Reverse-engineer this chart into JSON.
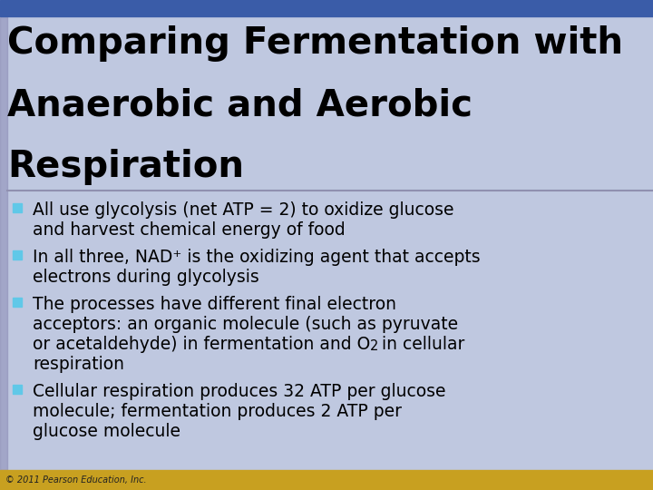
{
  "title_lines": [
    "Comparing Fermentation with",
    "Anaerobic and Aerobic",
    "Respiration"
  ],
  "title_color": "#000000",
  "title_bg_color": "#3a5ca8",
  "body_bg_color": "#bfc8e0",
  "footer_bg_color": "#c8a020",
  "footer_text": "© 2011 Pearson Education, Inc.",
  "bullet_color": "#60c8e8",
  "body_text_color": "#000000",
  "separator_color": "#9090b0",
  "left_bar_color": "#9090b8",
  "bullet_points": [
    {
      "main": "All use glycolysis (net ATP = 2) to oxidize glucose",
      "continuation": [
        "and harvest chemical energy of food"
      ],
      "o2_line": null
    },
    {
      "main": "In all three, NAD⁺ is the oxidizing agent that accepts",
      "continuation": [
        "electrons during glycolysis"
      ],
      "o2_line": null
    },
    {
      "main": "The processes have different final electron",
      "continuation": [
        "acceptors: an organic molecule (such as pyruvate",
        "respiration"
      ],
      "o2_line": "or acetaldehyde) in fermentation and O₂ in cellular"
    },
    {
      "main": "Cellular respiration produces 32 ATP per glucose",
      "continuation": [
        "molecule; fermentation produces 2 ATP per",
        "glucose molecule"
      ],
      "o2_line": null
    }
  ]
}
